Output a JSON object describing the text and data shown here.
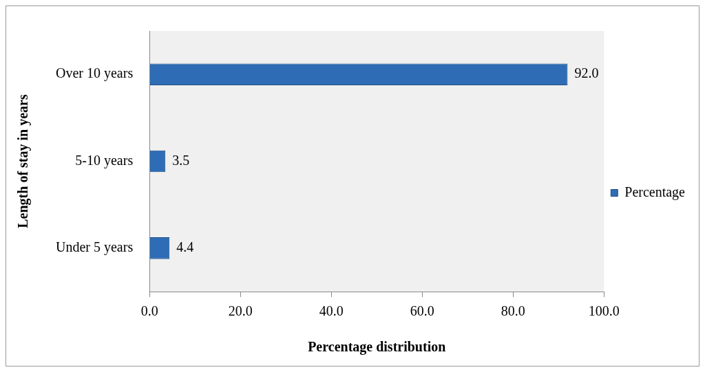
{
  "chart_data": {
    "type": "bar",
    "orientation": "horizontal",
    "xlabel": "Percentage distribution",
    "ylabel": "Length of stay in years",
    "categories": [
      "Over 10 years",
      "5-10 years",
      "Under 5 years"
    ],
    "series": [
      {
        "name": "Percentage",
        "color": "#2e6db5",
        "values": [
          92.0,
          3.5,
          4.4
        ],
        "value_labels": [
          "92.0",
          "3.5",
          "4.4"
        ]
      }
    ],
    "xlim": [
      0,
      100
    ],
    "xticks": [
      {
        "value": 0,
        "label": "0.0"
      },
      {
        "value": 20,
        "label": "20.0"
      },
      {
        "value": 40,
        "label": "40.0"
      },
      {
        "value": 60,
        "label": "60.0"
      },
      {
        "value": 80,
        "label": "80.0"
      },
      {
        "value": 100,
        "label": "100.0"
      }
    ],
    "grid": false,
    "legend": "right"
  }
}
